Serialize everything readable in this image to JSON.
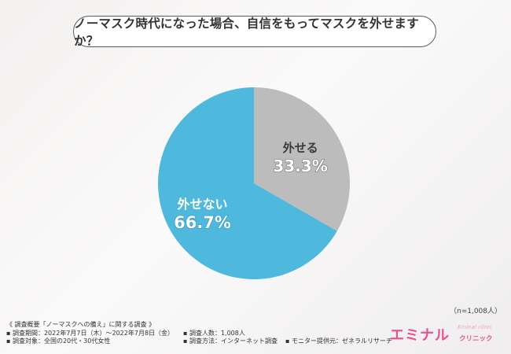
{
  "question": "ノーマスク時代になった場合、自信をもってマスクを外せますか？",
  "sample_size": "（n=1,008人）",
  "notes": {
    "heading": "《 調査概要「ノーマスクへの備え」に関する調査 》",
    "period": "▪ 調査期間：2022年7月7日（木）〜2022年7月8日（金）",
    "target": "▪ 調査対象：全国の20代・30代女性",
    "count": "▪ 調査人数：1,008人",
    "method": "▪ 調査方法：インターネット調査",
    "provider": "▪ モニター提供元：ゼネラルリサーチ"
  },
  "logo": {
    "main": "エミナル",
    "sub": "クリニック",
    "script": "Eminal clinic"
  },
  "chart_data": {
    "type": "pie",
    "title": "ノーマスク時代になった場合、自信をもってマスクを外せますか？",
    "slices": [
      {
        "label": "外せる",
        "value": 33.3,
        "display": "33.3%",
        "color": "#bcbcbc"
      },
      {
        "label": "外せない",
        "value": 66.7,
        "display": "66.7%",
        "color": "#4fb8dd"
      }
    ],
    "start_angle_deg": 0,
    "direction": "clockwise"
  }
}
